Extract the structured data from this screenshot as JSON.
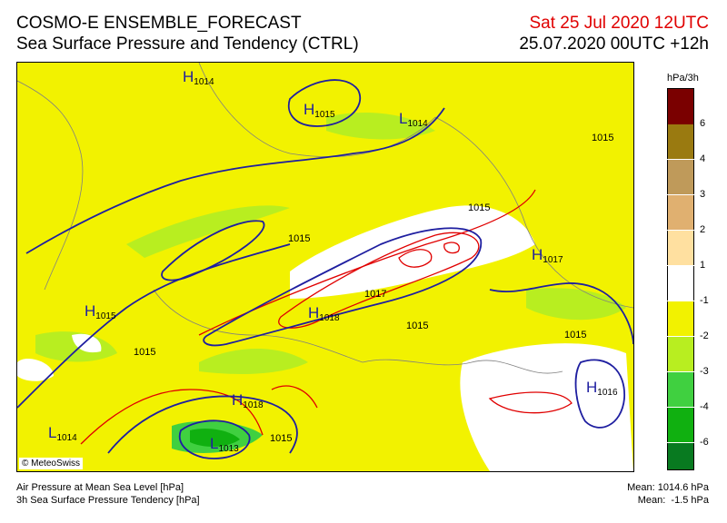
{
  "header": {
    "title_line1": "COSMO-E ENSEMBLE_FORECAST",
    "title_line2": "Sea Surface Pressure and Tendency (CTRL)",
    "valid_time": "Sat 25 Jul 2020 12UTC",
    "run_time": "25.07.2020 00UTC +12h"
  },
  "map": {
    "copyright": "© MeteoSwiss",
    "pressure_centers": [
      {
        "type": "H",
        "value": "1014"
      },
      {
        "type": "H",
        "value": "1015"
      },
      {
        "type": "L",
        "value": "1014"
      },
      {
        "type": "H",
        "value": "1017"
      },
      {
        "type": "H",
        "value": "1015"
      },
      {
        "type": "H",
        "value": "1018"
      },
      {
        "type": "H",
        "value": "1018"
      },
      {
        "type": "H",
        "value": "1016"
      },
      {
        "type": "L",
        "value": "1014"
      },
      {
        "type": "L",
        "value": "1013"
      }
    ],
    "isobar_labels": [
      "1015",
      "1015",
      "1015",
      "1017",
      "1015",
      "1015",
      "1015",
      "1015"
    ]
  },
  "legend": {
    "unit": "hPa/3h",
    "ticks": [
      "6",
      "4",
      "3",
      "2",
      "1",
      "-1",
      "-2",
      "-3",
      "-4",
      "-6"
    ],
    "colors": [
      "#7a0000",
      "#9a7a10",
      "#bf9a5a",
      "#e0b070",
      "#ffe0a0",
      "#ffffff",
      "#f2f200",
      "#b8ee20",
      "#40d040",
      "#10b010",
      "#087a20"
    ]
  },
  "footer": {
    "left_line1": "Air Pressure at Mean Sea Level [hPa]",
    "left_line2": "3h Sea Surface Pressure Tendency [hPa]",
    "right_line1": "Mean: 1014.6 hPa",
    "right_line2": "Mean:  -1.5 hPa"
  }
}
